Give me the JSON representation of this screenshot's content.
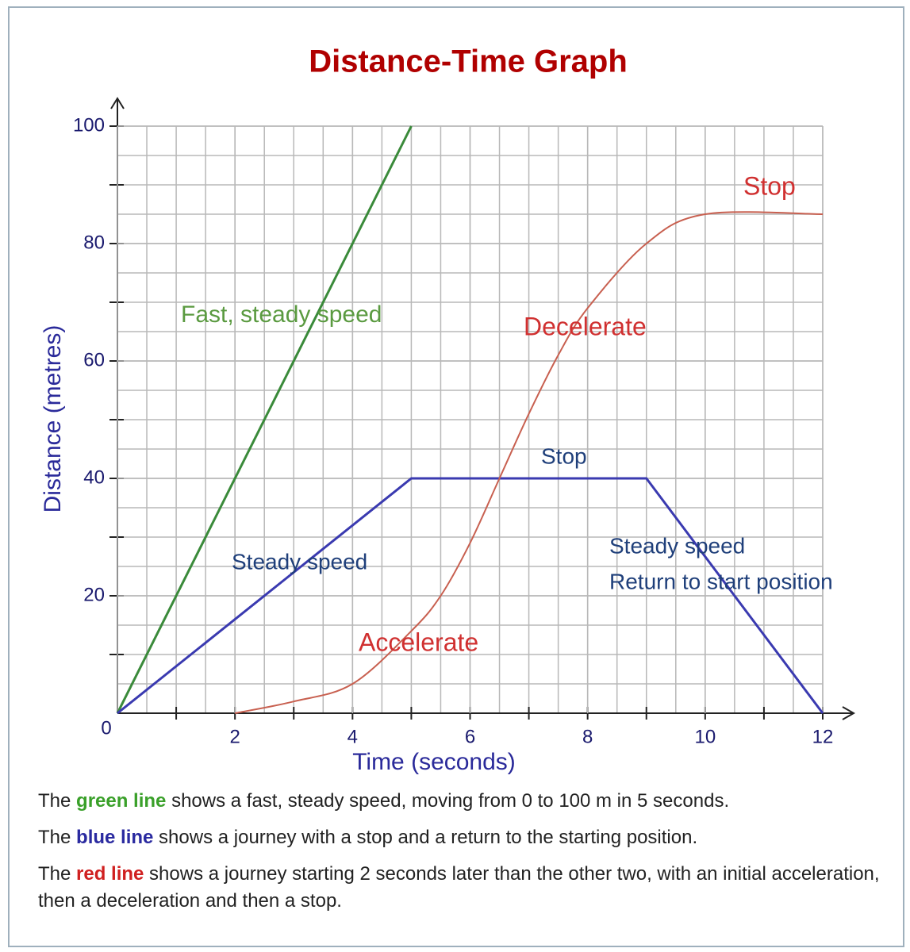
{
  "chart_data": {
    "type": "line",
    "title": "Distance-Time Graph",
    "x_label": "Time (seconds)",
    "y_label": "Distance (metres)",
    "xlim": [
      0,
      12
    ],
    "ylim": [
      0,
      100
    ],
    "xticks": [
      0,
      2,
      4,
      6,
      8,
      10,
      12
    ],
    "yticks": [
      20,
      40,
      60,
      80,
      100
    ],
    "grid": true,
    "series": [
      {
        "color": "#3a8a3a",
        "x": [
          0,
          5
        ],
        "values": [
          0,
          100
        ]
      },
      {
        "color": "#3a3ab0",
        "x": [
          0,
          5,
          9,
          12
        ],
        "values": [
          0,
          40,
          40,
          0
        ]
      },
      {
        "color": "#c86050",
        "x": [
          2,
          3,
          4,
          5,
          5.5,
          6,
          6.5,
          7,
          7.5,
          8,
          9,
          10,
          12
        ],
        "values": [
          0,
          2,
          5,
          14,
          20,
          29,
          40,
          51,
          61,
          69,
          80,
          85,
          85
        ]
      }
    ],
    "annotations": [
      {
        "text": "Fast, steady speed",
        "color": "#5a9a40"
      },
      {
        "text": "Decelerate",
        "color": "#d03030"
      },
      {
        "text": "Stop",
        "color": "#d03030"
      },
      {
        "text": "Accelerate",
        "color": "#d03030"
      },
      {
        "text": "Stop",
        "color": "#1f3f7a"
      },
      {
        "text": "Steady speed",
        "color": "#1f3f7a"
      },
      {
        "text": "Steady speed",
        "color": "#1f3f7a"
      },
      {
        "text": "Return to start position",
        "color": "#1f3f7a"
      }
    ]
  },
  "notes": [
    {
      "before": "The ",
      "highlight": "green line",
      "color": "#3aa02a",
      "after": " shows a fast, steady speed, moving from 0 to 100 m in 5 seconds."
    },
    {
      "before": "The ",
      "highlight": "blue line",
      "color": "#2a2aa0",
      "after": " shows a journey with a stop and a return to the starting position."
    },
    {
      "before": "The ",
      "highlight": "red line",
      "color": "#d02020",
      "after": " shows a journey starting 2 seconds later than the other two, with an initial acceleration, then a deceleration and then a stop."
    }
  ]
}
